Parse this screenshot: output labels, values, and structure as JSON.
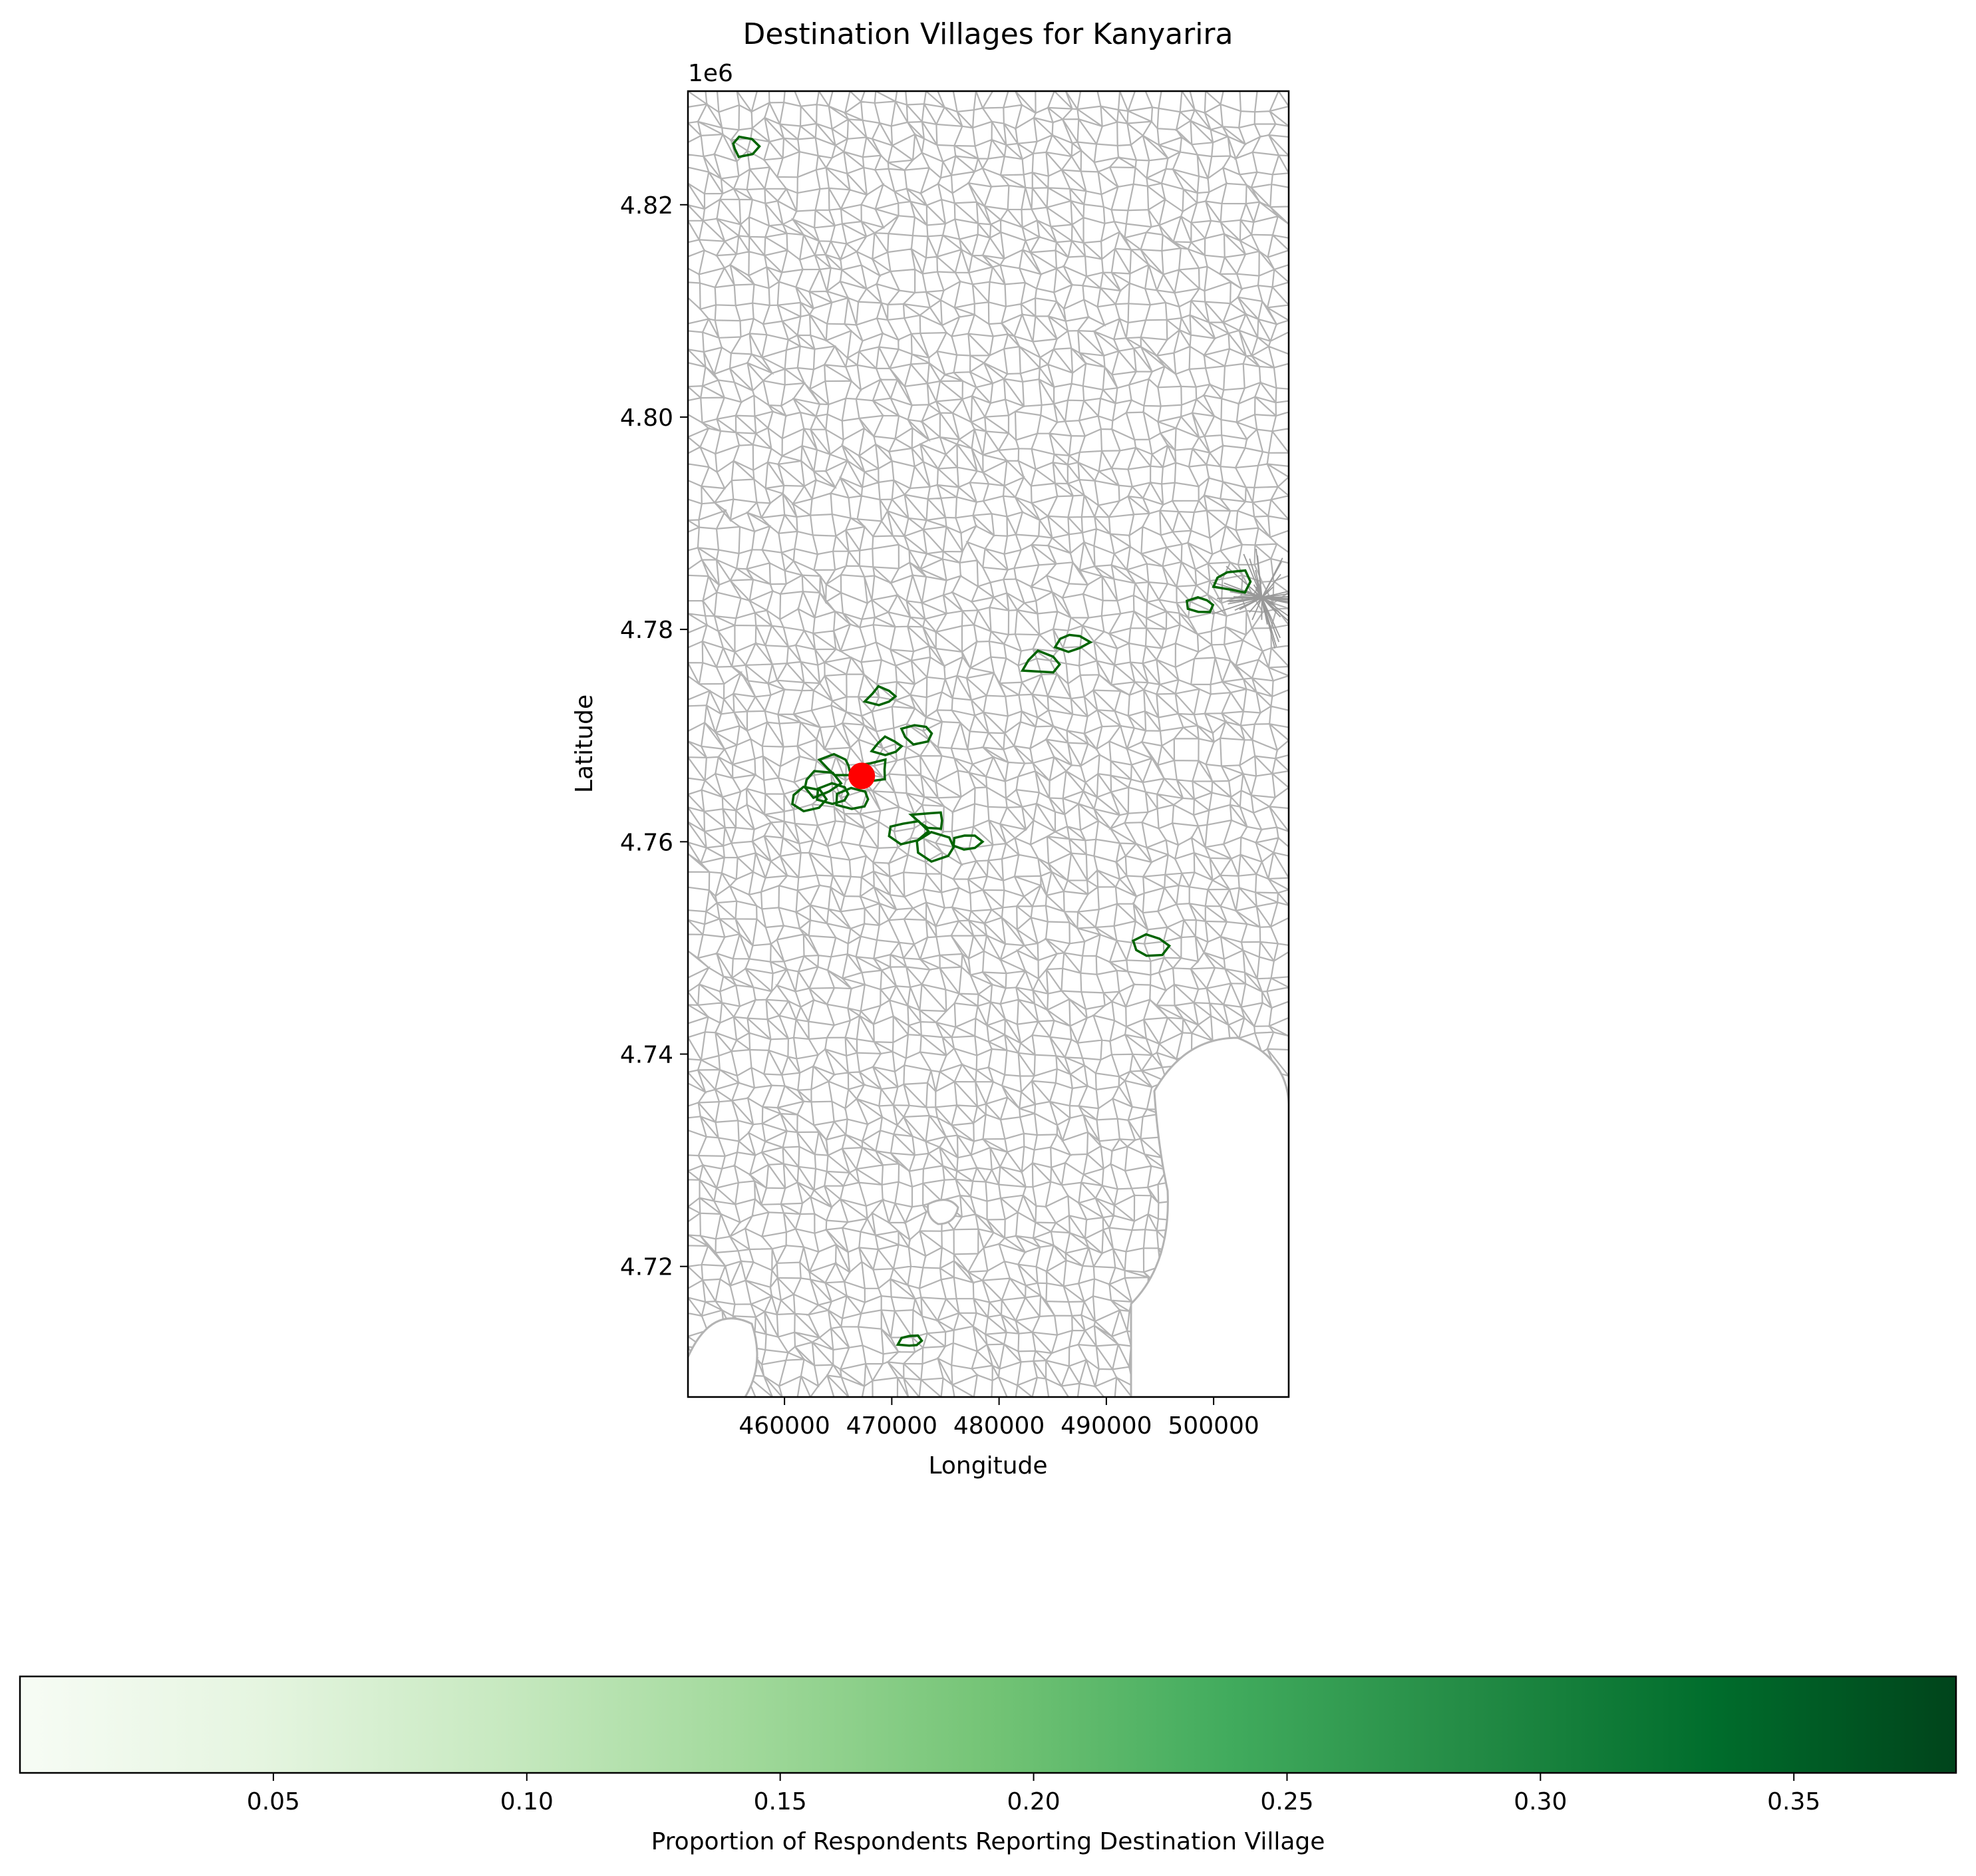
{
  "chart_data": {
    "type": "map",
    "title": "Destination Villages for Kanyarira",
    "xlabel": "Longitude",
    "ylabel": "Latitude",
    "y_offset_label": "1e6",
    "xlim": [
      451000,
      507000
    ],
    "ylim": [
      4.7077,
      4.8307
    ],
    "x_ticks": [
      {
        "value": 460000,
        "label": "460000"
      },
      {
        "value": 470000,
        "label": "470000"
      },
      {
        "value": 480000,
        "label": "480000"
      },
      {
        "value": 490000,
        "label": "490000"
      },
      {
        "value": 500000,
        "label": "500000"
      }
    ],
    "y_ticks": [
      {
        "value": 4.72,
        "label": "4.72"
      },
      {
        "value": 4.74,
        "label": "4.74"
      },
      {
        "value": 4.76,
        "label": "4.76"
      },
      {
        "value": 4.78,
        "label": "4.78"
      },
      {
        "value": 4.8,
        "label": "4.80"
      },
      {
        "value": 4.82,
        "label": "4.82"
      }
    ],
    "origin_point": {
      "x": 467200,
      "y": 4.7662,
      "color": "#ff0000"
    },
    "destination_villages": [
      {
        "x": 456100,
        "y": 4.8255
      },
      {
        "x": 465000,
        "y": 4.7672
      },
      {
        "x": 463200,
        "y": 4.7655
      },
      {
        "x": 462200,
        "y": 4.764
      },
      {
        "x": 464800,
        "y": 4.7645
      },
      {
        "x": 466600,
        "y": 4.764
      },
      {
        "x": 468200,
        "y": 4.7668
      },
      {
        "x": 469700,
        "y": 4.769
      },
      {
        "x": 472400,
        "y": 4.7702
      },
      {
        "x": 469100,
        "y": 4.7737
      },
      {
        "x": 471300,
        "y": 4.761
      },
      {
        "x": 473600,
        "y": 4.762
      },
      {
        "x": 477000,
        "y": 4.76
      },
      {
        "x": 474200,
        "y": 4.7595
      },
      {
        "x": 484100,
        "y": 4.7767
      },
      {
        "x": 486800,
        "y": 4.7788
      },
      {
        "x": 498800,
        "y": 4.7823
      },
      {
        "x": 501600,
        "y": 4.7845
      },
      {
        "x": 494100,
        "y": 4.7502
      },
      {
        "x": 471800,
        "y": 4.713
      }
    ],
    "colorbar": {
      "label": "Proportion of Respondents Reporting Destination Village",
      "range": [
        0.0,
        0.382
      ],
      "colormap": "Greens",
      "ticks": [
        {
          "value": 0.05,
          "label": "0.05"
        },
        {
          "value": 0.1,
          "label": "0.10"
        },
        {
          "value": 0.15,
          "label": "0.15"
        },
        {
          "value": 0.2,
          "label": "0.20"
        },
        {
          "value": 0.25,
          "label": "0.25"
        },
        {
          "value": 0.3,
          "label": "0.30"
        },
        {
          "value": 0.35,
          "label": "0.35"
        }
      ]
    },
    "boundary_color": "#b3b3b3",
    "destination_outline_color": "#006400"
  }
}
